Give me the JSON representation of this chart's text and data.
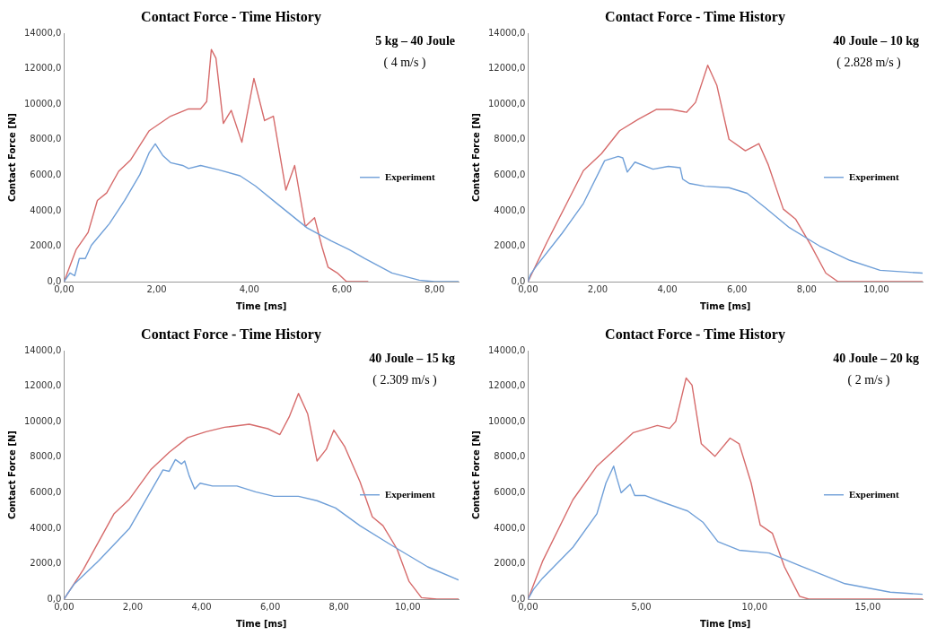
{
  "chart_data": [
    {
      "type": "line",
      "title": "Contact Force - Time History",
      "xlabel": "Time [ms]",
      "ylabel": "Contact Force [N]",
      "annotations": [
        "5 kg – 40 Joule",
        "( 4 m/s )"
      ],
      "xlim": [
        0,
        8.52
      ],
      "xticks": [
        {
          "value": 0,
          "label": "0,00"
        },
        {
          "value": 2,
          "label": "2,00"
        },
        {
          "value": 4,
          "label": "4,00"
        },
        {
          "value": 6,
          "label": "6,00"
        },
        {
          "value": 8,
          "label": "8,00"
        }
      ],
      "ylim": [
        0,
        14000
      ],
      "yticks": [
        {
          "value": 0,
          "label": "0,0"
        },
        {
          "value": 2000,
          "label": "2000,0"
        },
        {
          "value": 4000,
          "label": "4000,0"
        },
        {
          "value": 6000,
          "label": "6000,0"
        },
        {
          "value": 8000,
          "label": "8000,0"
        },
        {
          "value": 10000,
          "label": "10000,0"
        },
        {
          "value": 12000,
          "label": "12000,0"
        },
        {
          "value": 14000,
          "label": "14000,0"
        }
      ],
      "grid": false,
      "legend": "right",
      "marker": "none",
      "line_style": "solid",
      "series": [
        {
          "name": "Experiment",
          "color": "#6f9fd8",
          "x": [
            0,
            0.13,
            0.23,
            0.33,
            0.46,
            0.59,
            0.98,
            1.31,
            1.64,
            1.84,
            1.97,
            2.03,
            2.13,
            2.3,
            2.56,
            2.69,
            2.95,
            3.34,
            3.8,
            4.13,
            4.59,
            5.25,
            5.77,
            6.16,
            6.49,
            7.08,
            7.67,
            8.0,
            8.52
          ],
          "values": [
            0,
            490,
            330,
            1300,
            1300,
            2050,
            3270,
            4580,
            6050,
            7280,
            7770,
            7530,
            7120,
            6710,
            6550,
            6380,
            6550,
            6300,
            5970,
            5400,
            4420,
            3030,
            2290,
            1800,
            1310,
            490,
            80,
            0,
            0
          ]
        },
        {
          "color": "#d66b6b",
          "x": [
            0,
            0.26,
            0.52,
            0.72,
            0.92,
            1.18,
            1.44,
            1.84,
            2.3,
            2.69,
            2.95,
            3.08,
            3.18,
            3.28,
            3.44,
            3.61,
            3.84,
            4.1,
            4.33,
            4.52,
            4.79,
            4.98,
            5.21,
            5.41,
            5.57,
            5.7,
            5.9,
            6.1,
            6.56
          ],
          "values": [
            0,
            1800,
            2780,
            4580,
            5000,
            6220,
            6870,
            8510,
            9330,
            9740,
            9740,
            10150,
            13090,
            12600,
            8920,
            9660,
            7860,
            11460,
            9080,
            9330,
            5160,
            6550,
            3110,
            3600,
            1960,
            820,
            490,
            0,
            0
          ]
        }
      ]
    },
    {
      "type": "line",
      "title": "Contact Force - Time History",
      "xlabel": "Time [ms]",
      "ylabel": "Contact Force [N]",
      "annotations": [
        "40 Joule – 10 kg",
        "( 2.828 m/s )"
      ],
      "xlim": [
        0,
        11.33
      ],
      "xticks": [
        {
          "value": 0,
          "label": "0,00"
        },
        {
          "value": 2,
          "label": "2,00"
        },
        {
          "value": 4,
          "label": "4,00"
        },
        {
          "value": 6,
          "label": "6,00"
        },
        {
          "value": 8,
          "label": "8,00"
        },
        {
          "value": 10,
          "label": "10,00"
        }
      ],
      "ylim": [
        0,
        14000
      ],
      "yticks": [
        {
          "value": 0,
          "label": "0,0"
        },
        {
          "value": 2000,
          "label": "2000,0"
        },
        {
          "value": 4000,
          "label": "4000,0"
        },
        {
          "value": 6000,
          "label": "6000,0"
        },
        {
          "value": 8000,
          "label": "8000,0"
        },
        {
          "value": 10000,
          "label": "10000,0"
        },
        {
          "value": 12000,
          "label": "12000,0"
        },
        {
          "value": 14000,
          "label": "14000,0"
        }
      ],
      "grid": false,
      "legend": "right",
      "marker": "none",
      "line_style": "solid",
      "series": [
        {
          "name": "Experiment",
          "color": "#6f9fd8",
          "x": [
            0,
            0.07,
            0.24,
            0.98,
            1.59,
            2.2,
            2.59,
            2.72,
            2.85,
            3.07,
            3.59,
            4.03,
            4.37,
            4.44,
            4.63,
            5.07,
            5.77,
            6.29,
            6.81,
            7.5,
            8.37,
            9.24,
            10.11,
            11.33
          ],
          "values": [
            0,
            400,
            880,
            2730,
            4410,
            6820,
            7060,
            6980,
            6180,
            6740,
            6340,
            6500,
            6420,
            5780,
            5540,
            5380,
            5300,
            4980,
            4170,
            3050,
            2010,
            1200,
            640,
            480
          ]
        },
        {
          "color": "#d66b6b",
          "x": [
            0,
            0.55,
            1.59,
            2.11,
            2.63,
            3.16,
            3.68,
            4.11,
            4.55,
            4.81,
            5.16,
            5.42,
            5.77,
            6.24,
            6.63,
            6.9,
            7.33,
            7.68,
            8.11,
            8.55,
            8.9,
            9.24,
            11.33
          ],
          "values": [
            0,
            2250,
            6260,
            7220,
            8510,
            9150,
            9710,
            9710,
            9550,
            10110,
            12200,
            11080,
            8030,
            7380,
            7780,
            6580,
            4090,
            3530,
            2090,
            480,
            0,
            0,
            0
          ]
        }
      ]
    },
    {
      "type": "line",
      "title": "Contact Force - Time History",
      "xlabel": "Time [ms]",
      "ylabel": "Contact Force [N]",
      "annotations": [
        "40 Joule – 15 kg",
        "( 2.309 m/s )"
      ],
      "xlim": [
        0,
        11.48
      ],
      "xticks": [
        {
          "value": 0,
          "label": "0,00"
        },
        {
          "value": 2,
          "label": "2,00"
        },
        {
          "value": 4,
          "label": "4,00"
        },
        {
          "value": 6,
          "label": "6,00"
        },
        {
          "value": 8,
          "label": "8,00"
        },
        {
          "value": 10,
          "label": "10,00"
        }
      ],
      "ylim": [
        0,
        14000
      ],
      "yticks": [
        {
          "value": 0,
          "label": "0,0"
        },
        {
          "value": 2000,
          "label": "2000,0"
        },
        {
          "value": 4000,
          "label": "4000,0"
        },
        {
          "value": 6000,
          "label": "6000,0"
        },
        {
          "value": 8000,
          "label": "8000,0"
        },
        {
          "value": 10000,
          "label": "10000,0"
        },
        {
          "value": 12000,
          "label": "12000,0"
        },
        {
          "value": 14000,
          "label": "14000,0"
        }
      ],
      "grid": false,
      "legend": "right",
      "marker": "none",
      "line_style": "solid",
      "series": [
        {
          "name": "Experiment",
          "color": "#6f9fd8",
          "x": [
            0,
            0.11,
            0.29,
            1.0,
            1.9,
            2.88,
            3.06,
            3.24,
            3.42,
            3.51,
            3.64,
            3.8,
            3.96,
            4.32,
            5.03,
            5.57,
            6.11,
            6.82,
            7.36,
            7.9,
            8.61,
            9.51,
            10.58,
            11.48
          ],
          "values": [
            0,
            330,
            830,
            2150,
            3980,
            7290,
            7210,
            7870,
            7620,
            7790,
            6960,
            6210,
            6540,
            6380,
            6380,
            6050,
            5800,
            5800,
            5550,
            5140,
            4140,
            3060,
            1820,
            1080
          ]
        },
        {
          "color": "#d66b6b",
          "x": [
            0,
            0.56,
            1.45,
            1.9,
            2.52,
            3.06,
            3.6,
            4.13,
            4.67,
            5.39,
            5.93,
            6.28,
            6.55,
            6.82,
            7.09,
            7.36,
            7.63,
            7.85,
            8.16,
            8.61,
            8.97,
            9.28,
            9.69,
            10.04,
            10.4,
            10.85,
            11.48
          ],
          "values": [
            0,
            1660,
            4800,
            5630,
            7290,
            8280,
            9110,
            9440,
            9690,
            9860,
            9610,
            9280,
            10270,
            11600,
            10440,
            7790,
            8450,
            9530,
            8620,
            6630,
            4640,
            4140,
            2820,
            990,
            80,
            0,
            0
          ]
        }
      ]
    },
    {
      "type": "line",
      "title": "Contact Force - Time History",
      "xlabel": "Time [ms]",
      "ylabel": "Contact Force [N]",
      "annotations": [
        "40 Joule – 20 kg",
        "( 2 m/s )"
      ],
      "xlim": [
        0,
        17.42
      ],
      "xticks": [
        {
          "value": 0,
          "label": "0,00"
        },
        {
          "value": 5,
          "label": "5,00"
        },
        {
          "value": 10,
          "label": "10,00"
        },
        {
          "value": 15,
          "label": "15,00"
        }
      ],
      "ylim": [
        0,
        14000
      ],
      "yticks": [
        {
          "value": 0,
          "label": "0,0"
        },
        {
          "value": 2000,
          "label": "2000,0"
        },
        {
          "value": 4000,
          "label": "4000,0"
        },
        {
          "value": 6000,
          "label": "6000,0"
        },
        {
          "value": 8000,
          "label": "8000,0"
        },
        {
          "value": 10000,
          "label": "10000,0"
        },
        {
          "value": 12000,
          "label": "12000,0"
        },
        {
          "value": 14000,
          "label": "14000,0"
        }
      ],
      "grid": false,
      "legend": "right",
      "marker": "none",
      "line_style": "solid",
      "series": [
        {
          "name": "Experiment",
          "color": "#6f9fd8",
          "x": [
            0,
            0.24,
            0.64,
            1.98,
            3.04,
            3.44,
            3.78,
            3.91,
            4.11,
            4.51,
            4.71,
            5.18,
            5.98,
            7.05,
            7.72,
            8.38,
            9.32,
            10.65,
            11.99,
            13.99,
            15.99,
            17.42
          ],
          "values": [
            0,
            550,
            1180,
            2920,
            4810,
            6550,
            7500,
            6870,
            6000,
            6470,
            5840,
            5840,
            5450,
            4970,
            4340,
            3240,
            2760,
            2600,
            1890,
            870,
            390,
            270
          ]
        },
        {
          "color": "#d66b6b",
          "x": [
            0,
            0.64,
            1.98,
            3.04,
            4.65,
            5.71,
            6.25,
            6.52,
            6.98,
            7.24,
            7.65,
            8.25,
            8.92,
            9.32,
            9.85,
            10.25,
            10.79,
            11.32,
            11.99,
            12.39,
            17.42
          ],
          "values": [
            0,
            2130,
            5600,
            7500,
            9390,
            9790,
            9630,
            10020,
            12470,
            12070,
            8760,
            8050,
            9080,
            8760,
            6550,
            4180,
            3710,
            1820,
            160,
            0,
            0
          ]
        }
      ]
    }
  ]
}
